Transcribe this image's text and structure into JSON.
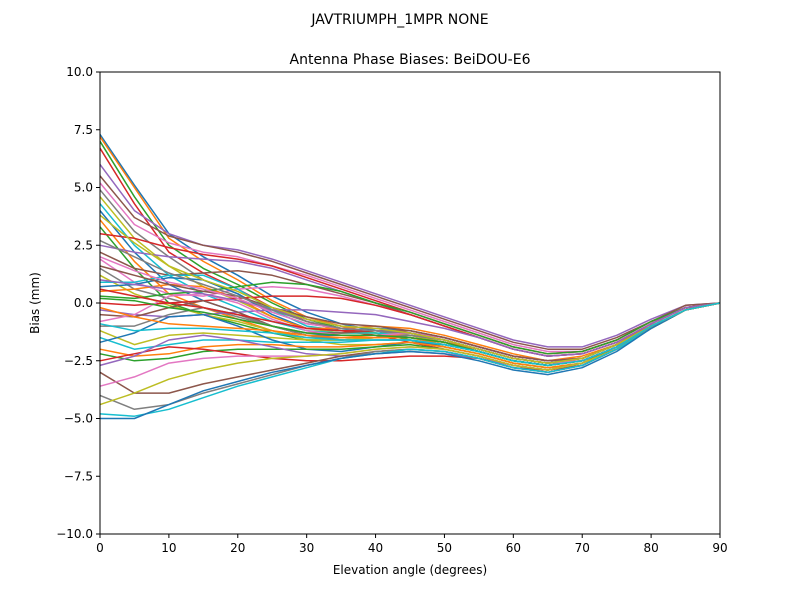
{
  "figure": {
    "suptitle": "JAVTRIUMPH_1MPR NONE"
  },
  "chart_data": {
    "type": "line",
    "title": "Antenna Phase Biases: BeiDOU-E6",
    "xlabel": "Elevation angle (degrees)",
    "ylabel": "Bias (mm)",
    "xlim": [
      0,
      90
    ],
    "ylim": [
      -10,
      10
    ],
    "xticks": [
      0,
      10,
      20,
      30,
      40,
      50,
      60,
      70,
      80,
      90
    ],
    "xtick_labels": [
      "0",
      "10",
      "20",
      "30",
      "40",
      "50",
      "60",
      "70",
      "80",
      "90"
    ],
    "yticks": [
      -10,
      -7.5,
      -5,
      -2.5,
      0,
      2.5,
      5,
      7.5,
      10
    ],
    "ytick_labels": [
      "−10.0",
      "−7.5",
      "−5.0",
      "−2.5",
      "0.0",
      "2.5",
      "5.0",
      "7.5",
      "10.0"
    ],
    "grid": false,
    "legend": "none",
    "colors": [
      "#1f77b4",
      "#ff7f0e",
      "#2ca02c",
      "#d62728",
      "#9467bd",
      "#8c564b",
      "#e377c2",
      "#7f7f7f",
      "#bcbd22",
      "#17becf"
    ],
    "x": [
      0,
      5,
      10,
      15,
      20,
      25,
      30,
      35,
      40,
      45,
      50,
      55,
      60,
      65,
      70,
      75,
      80,
      85,
      90
    ],
    "series": [
      {
        "values": [
          7.3,
          5.1,
          3.0,
          2.0,
          1.2,
          0.3,
          -0.4,
          -0.9,
          -1.2,
          -1.5,
          -1.7,
          -2.0,
          -2.4,
          -2.6,
          -2.4,
          -1.8,
          -1.0,
          -0.3,
          0.0
        ]
      },
      {
        "values": [
          7.2,
          5.0,
          2.8,
          1.8,
          1.0,
          0.1,
          -0.6,
          -1.0,
          -1.3,
          -1.5,
          -1.8,
          -2.1,
          -2.5,
          -2.7,
          -2.5,
          -1.9,
          -1.0,
          -0.3,
          0.0
        ]
      },
      {
        "values": [
          7.0,
          4.6,
          2.5,
          1.5,
          0.8,
          0.0,
          -0.7,
          -1.1,
          -1.3,
          -1.6,
          -1.9,
          -2.2,
          -2.6,
          -2.8,
          -2.6,
          -1.9,
          -1.1,
          -0.3,
          0.0
        ]
      },
      {
        "values": [
          6.7,
          4.3,
          2.2,
          1.3,
          0.6,
          -0.2,
          -0.8,
          -1.2,
          -1.4,
          -1.7,
          -2.0,
          -2.3,
          -2.7,
          -2.9,
          -2.7,
          -2.0,
          -1.1,
          -0.3,
          0.0
        ]
      },
      {
        "values": [
          6.0,
          4.0,
          3.0,
          2.5,
          2.3,
          1.9,
          1.4,
          0.9,
          0.4,
          -0.1,
          -0.6,
          -1.1,
          -1.6,
          -1.9,
          -1.9,
          -1.4,
          -0.7,
          -0.1,
          0.0
        ]
      },
      {
        "values": [
          5.5,
          3.7,
          2.9,
          2.5,
          2.2,
          1.8,
          1.3,
          0.8,
          0.3,
          -0.2,
          -0.7,
          -1.2,
          -1.7,
          -2.0,
          -2.0,
          -1.5,
          -0.8,
          -0.1,
          0.0
        ]
      },
      {
        "values": [
          5.2,
          3.4,
          2.6,
          2.2,
          2.0,
          1.6,
          1.2,
          0.7,
          0.2,
          -0.3,
          -0.8,
          -1.3,
          -1.8,
          -2.1,
          -2.1,
          -1.6,
          -0.8,
          -0.2,
          0.0
        ]
      },
      {
        "values": [
          4.9,
          3.1,
          2.0,
          1.0,
          0.4,
          -0.4,
          -0.9,
          -1.1,
          -1.2,
          -1.4,
          -1.7,
          -2.0,
          -2.4,
          -2.6,
          -2.5,
          -1.9,
          -1.0,
          -0.3,
          0.0
        ]
      },
      {
        "values": [
          4.6,
          2.8,
          1.6,
          0.7,
          0.1,
          -0.6,
          -1.1,
          -1.3,
          -1.3,
          -1.4,
          -1.7,
          -2.1,
          -2.5,
          -2.7,
          -2.5,
          -1.9,
          -1.0,
          -0.3,
          0.0
        ]
      },
      {
        "values": [
          4.3,
          2.5,
          1.2,
          0.4,
          -0.2,
          -0.8,
          -1.2,
          -1.3,
          -1.3,
          -1.4,
          -1.6,
          -2.0,
          -2.4,
          -2.6,
          -2.4,
          -1.8,
          -1.0,
          -0.3,
          0.0
        ]
      },
      {
        "values": [
          4.0,
          2.2,
          0.8,
          0.1,
          -0.4,
          -1.0,
          -1.4,
          -1.4,
          -1.4,
          -1.5,
          -1.7,
          -2.1,
          -2.5,
          -2.7,
          -2.5,
          -1.9,
          -1.0,
          -0.3,
          0.0
        ]
      },
      {
        "values": [
          3.6,
          1.8,
          0.4,
          -0.2,
          -0.7,
          -1.2,
          -1.5,
          -1.5,
          -1.4,
          -1.4,
          -1.6,
          -2.0,
          -2.4,
          -2.6,
          -2.4,
          -1.8,
          -0.9,
          -0.2,
          0.0
        ]
      },
      {
        "values": [
          3.3,
          1.5,
          0.0,
          -0.5,
          -0.9,
          -1.3,
          -1.6,
          -1.6,
          -1.5,
          -1.5,
          -1.7,
          -2.1,
          -2.5,
          -2.7,
          -2.5,
          -1.9,
          -1.0,
          -0.3,
          0.0
        ]
      },
      {
        "values": [
          3.0,
          2.8,
          2.4,
          2.1,
          1.9,
          1.6,
          1.1,
          0.6,
          0.1,
          -0.4,
          -0.9,
          -1.4,
          -1.9,
          -2.2,
          -2.1,
          -1.6,
          -0.8,
          -0.2,
          0.0
        ]
      },
      {
        "values": [
          2.5,
          2.2,
          2.0,
          1.9,
          1.8,
          1.5,
          1.0,
          0.5,
          0.0,
          -0.5,
          -1.0,
          -1.5,
          -2.0,
          -2.3,
          -2.2,
          -1.7,
          -0.9,
          -0.2,
          0.0
        ]
      },
      {
        "values": [
          2.2,
          1.5,
          1.2,
          1.3,
          1.4,
          1.2,
          0.8,
          0.4,
          0.0,
          -0.5,
          -1.0,
          -1.5,
          -2.0,
          -2.3,
          -2.2,
          -1.7,
          -0.9,
          -0.2,
          0.0
        ]
      },
      {
        "values": [
          1.9,
          0.9,
          0.4,
          0.3,
          0.6,
          0.7,
          0.6,
          0.3,
          -0.1,
          -0.5,
          -1.0,
          -1.5,
          -2.0,
          -2.3,
          -2.2,
          -1.7,
          -0.9,
          -0.2,
          0.0
        ]
      },
      {
        "values": [
          1.5,
          0.6,
          0.2,
          -0.2,
          -0.6,
          -1.0,
          -1.4,
          -1.6,
          -1.6,
          -1.6,
          -1.8,
          -2.1,
          -2.5,
          -2.7,
          -2.5,
          -1.9,
          -1.0,
          -0.3,
          0.0
        ]
      },
      {
        "values": [
          1.2,
          0.4,
          -0.1,
          -0.5,
          -0.8,
          -1.2,
          -1.6,
          -1.8,
          -1.8,
          -1.7,
          -1.9,
          -2.2,
          -2.6,
          -2.8,
          -2.6,
          -2.0,
          -1.1,
          -0.3,
          0.0
        ]
      },
      {
        "values": [
          0.9,
          0.9,
          1.2,
          1.2,
          0.6,
          -0.3,
          -1.0,
          -1.2,
          -1.1,
          -1.2,
          -1.5,
          -1.9,
          -2.3,
          -2.5,
          -2.4,
          -1.8,
          -1.0,
          -0.3,
          0.0
        ]
      },
      {
        "values": [
          0.7,
          0.8,
          1.1,
          1.0,
          0.4,
          -0.5,
          -1.1,
          -1.2,
          -1.1,
          -1.2,
          -1.5,
          -1.9,
          -2.3,
          -2.5,
          -2.4,
          -1.8,
          -1.0,
          -0.3,
          0.0
        ]
      },
      {
        "values": [
          0.5,
          0.6,
          0.8,
          0.7,
          0.2,
          -0.6,
          -1.1,
          -1.1,
          -1.0,
          -1.1,
          -1.4,
          -1.8,
          -2.2,
          -2.5,
          -2.3,
          -1.8,
          -1.0,
          -0.3,
          0.0
        ]
      },
      {
        "values": [
          0.3,
          0.2,
          0.4,
          0.5,
          0.7,
          0.9,
          0.8,
          0.5,
          0.0,
          -0.4,
          -0.9,
          -1.4,
          -1.9,
          -2.2,
          -2.1,
          -1.6,
          -0.8,
          -0.2,
          0.0
        ]
      },
      {
        "values": [
          0.0,
          -0.1,
          0.0,
          0.1,
          0.2,
          0.3,
          0.3,
          0.2,
          -0.1,
          -0.5,
          -1.0,
          -1.5,
          -2.0,
          -2.3,
          -2.2,
          -1.7,
          -0.9,
          -0.2,
          0.0
        ]
      },
      {
        "values": [
          -0.3,
          -0.5,
          -0.6,
          -0.5,
          -0.4,
          -0.3,
          -0.3,
          -0.4,
          -0.5,
          -0.8,
          -1.1,
          -1.5,
          -2.0,
          -2.3,
          -2.2,
          -1.7,
          -0.9,
          -0.2,
          0.0
        ]
      },
      {
        "values": [
          -0.5,
          -0.6,
          -0.2,
          0.1,
          -0.4,
          -1.0,
          -1.3,
          -1.3,
          -1.2,
          -1.2,
          -1.5,
          -1.9,
          -2.3,
          -2.5,
          -2.4,
          -1.8,
          -1.0,
          -0.3,
          0.0
        ]
      },
      {
        "values": [
          -0.8,
          -0.5,
          0.3,
          0.4,
          0.0,
          -0.7,
          -1.2,
          -1.4,
          -1.4,
          -1.3,
          -1.5,
          -1.9,
          -2.3,
          -2.5,
          -2.4,
          -1.8,
          -1.0,
          -0.3,
          0.0
        ]
      },
      {
        "values": [
          -1.0,
          -1.0,
          -0.5,
          -0.2,
          -0.5,
          -1.0,
          -1.4,
          -1.6,
          -1.5,
          -1.4,
          -1.6,
          -2.0,
          -2.4,
          -2.6,
          -2.4,
          -1.8,
          -1.0,
          -0.3,
          0.0
        ]
      },
      {
        "values": [
          -1.2,
          -1.8,
          -1.4,
          -1.3,
          -1.4,
          -1.5,
          -1.6,
          -1.6,
          -1.5,
          -1.5,
          -1.7,
          -2.1,
          -2.5,
          -2.7,
          -2.5,
          -1.9,
          -1.0,
          -0.3,
          0.0
        ]
      },
      {
        "values": [
          -1.5,
          -2.0,
          -1.8,
          -1.6,
          -1.6,
          -1.7,
          -1.7,
          -1.7,
          -1.6,
          -1.6,
          -1.8,
          -2.1,
          -2.5,
          -2.7,
          -2.5,
          -1.9,
          -1.0,
          -0.3,
          0.0
        ]
      },
      {
        "values": [
          -1.7,
          -1.3,
          -0.6,
          -0.5,
          -1.0,
          -1.6,
          -2.0,
          -2.1,
          -1.9,
          -1.7,
          -1.8,
          -2.1,
          -2.5,
          -2.7,
          -2.5,
          -1.9,
          -1.0,
          -0.3,
          0.0
        ]
      },
      {
        "values": [
          -2.0,
          -2.3,
          -2.2,
          -1.9,
          -1.8,
          -1.8,
          -1.9,
          -1.9,
          -1.8,
          -1.7,
          -1.9,
          -2.2,
          -2.6,
          -2.8,
          -2.6,
          -2.0,
          -1.1,
          -0.3,
          0.0
        ]
      },
      {
        "values": [
          -2.2,
          -2.5,
          -2.4,
          -2.1,
          -2.0,
          -2.0,
          -2.0,
          -2.0,
          -1.9,
          -1.8,
          -2.0,
          -2.3,
          -2.7,
          -2.9,
          -2.6,
          -2.0,
          -1.1,
          -0.3,
          0.0
        ]
      },
      {
        "values": [
          -2.5,
          -2.2,
          -1.9,
          -2.0,
          -2.2,
          -2.4,
          -2.5,
          -2.5,
          -2.4,
          -2.3,
          -2.3,
          -2.4,
          -2.8,
          -3.0,
          -2.7,
          -2.0,
          -1.1,
          -0.3,
          0.0
        ]
      },
      {
        "values": [
          -2.7,
          -2.3,
          -1.6,
          -1.4,
          -1.6,
          -1.9,
          -2.2,
          -2.3,
          -2.2,
          -2.1,
          -2.2,
          -2.4,
          -2.7,
          -2.9,
          -2.6,
          -2.0,
          -1.1,
          -0.3,
          0.0
        ]
      },
      {
        "values": [
          -3.0,
          -3.9,
          -3.9,
          -3.5,
          -3.2,
          -2.9,
          -2.6,
          -2.3,
          -2.1,
          -2.0,
          -2.1,
          -2.4,
          -2.8,
          -2.9,
          -2.7,
          -2.0,
          -1.1,
          -0.3,
          0.0
        ]
      },
      {
        "values": [
          -3.6,
          -3.2,
          -2.6,
          -2.4,
          -2.3,
          -2.3,
          -2.3,
          -2.2,
          -2.0,
          -1.9,
          -2.0,
          -2.3,
          -2.7,
          -2.9,
          -2.6,
          -2.0,
          -1.1,
          -0.3,
          0.0
        ]
      },
      {
        "values": [
          -4.0,
          -4.6,
          -4.4,
          -3.9,
          -3.5,
          -3.1,
          -2.7,
          -2.4,
          -2.1,
          -2.0,
          -2.1,
          -2.4,
          -2.8,
          -3.0,
          -2.7,
          -2.0,
          -1.1,
          -0.3,
          0.0
        ]
      },
      {
        "values": [
          -4.4,
          -3.9,
          -3.3,
          -2.9,
          -2.6,
          -2.4,
          -2.3,
          -2.2,
          -2.0,
          -1.9,
          -2.0,
          -2.3,
          -2.7,
          -2.9,
          -2.6,
          -2.0,
          -1.1,
          -0.3,
          0.0
        ]
      },
      {
        "values": [
          -4.8,
          -4.9,
          -4.6,
          -4.1,
          -3.6,
          -3.2,
          -2.8,
          -2.4,
          -2.2,
          -2.0,
          -2.1,
          -2.4,
          -2.8,
          -3.0,
          -2.7,
          -2.0,
          -1.1,
          -0.3,
          0.0
        ]
      },
      {
        "values": [
          -5.0,
          -5.0,
          -4.4,
          -3.8,
          -3.4,
          -3.0,
          -2.7,
          -2.4,
          -2.2,
          -2.1,
          -2.2,
          -2.5,
          -2.9,
          -3.1,
          -2.8,
          -2.1,
          -1.1,
          -0.3,
          0.0
        ]
      },
      {
        "values": [
          -0.2,
          -0.6,
          -0.9,
          -1.0,
          -1.1,
          -1.2,
          -1.4,
          -1.5,
          -1.5,
          -1.5,
          -1.7,
          -2.0,
          -2.4,
          -2.6,
          -2.5,
          -1.9,
          -1.0,
          -0.3,
          0.0
        ]
      },
      {
        "values": [
          0.2,
          0.1,
          -0.2,
          -0.4,
          -0.7,
          -1.0,
          -1.3,
          -1.4,
          -1.4,
          -1.5,
          -1.7,
          -2.1,
          -2.5,
          -2.7,
          -2.5,
          -1.9,
          -1.0,
          -0.3,
          0.0
        ]
      },
      {
        "values": [
          0.6,
          0.3,
          0.0,
          -0.2,
          -0.5,
          -0.8,
          -1.1,
          -1.2,
          -1.2,
          -1.3,
          -1.6,
          -2.0,
          -2.4,
          -2.6,
          -2.4,
          -1.8,
          -1.0,
          -0.3,
          0.0
        ]
      },
      {
        "values": [
          1.0,
          0.8,
          0.6,
          0.4,
          0.1,
          -0.3,
          -0.7,
          -1.0,
          -1.1,
          -1.3,
          -1.6,
          -2.0,
          -2.4,
          -2.6,
          -2.4,
          -1.8,
          -1.0,
          -0.3,
          0.0
        ]
      },
      {
        "values": [
          1.6,
          1.2,
          0.8,
          0.5,
          0.3,
          -0.2,
          -0.6,
          -0.9,
          -1.0,
          -1.2,
          -1.5,
          -1.9,
          -2.3,
          -2.5,
          -2.4,
          -1.8,
          -1.0,
          -0.3,
          0.0
        ]
      },
      {
        "values": [
          2.0,
          1.4,
          0.9,
          0.6,
          0.2,
          -0.4,
          -0.9,
          -1.1,
          -1.2,
          -1.3,
          -1.6,
          -2.0,
          -2.4,
          -2.6,
          -2.5,
          -1.9,
          -1.0,
          -0.3,
          0.0
        ]
      },
      {
        "values": [
          2.7,
          2.0,
          1.3,
          0.8,
          0.3,
          -0.3,
          -0.8,
          -1.1,
          -1.2,
          -1.3,
          -1.6,
          -2.0,
          -2.4,
          -2.6,
          -2.4,
          -1.8,
          -1.0,
          -0.3,
          0.0
        ]
      },
      {
        "values": [
          3.8,
          2.6,
          1.6,
          1.0,
          0.5,
          -0.2,
          -0.7,
          -1.0,
          -1.1,
          -1.3,
          -1.6,
          -2.0,
          -2.4,
          -2.6,
          -2.4,
          -1.8,
          -1.0,
          -0.3,
          0.0
        ]
      },
      {
        "values": [
          -0.9,
          -1.2,
          -1.1,
          -1.1,
          -1.2,
          -1.3,
          -1.5,
          -1.6,
          -1.6,
          -1.6,
          -1.8,
          -2.1,
          -2.5,
          -2.7,
          -2.5,
          -1.9,
          -1.0,
          -0.3,
          0.0
        ]
      }
    ]
  }
}
